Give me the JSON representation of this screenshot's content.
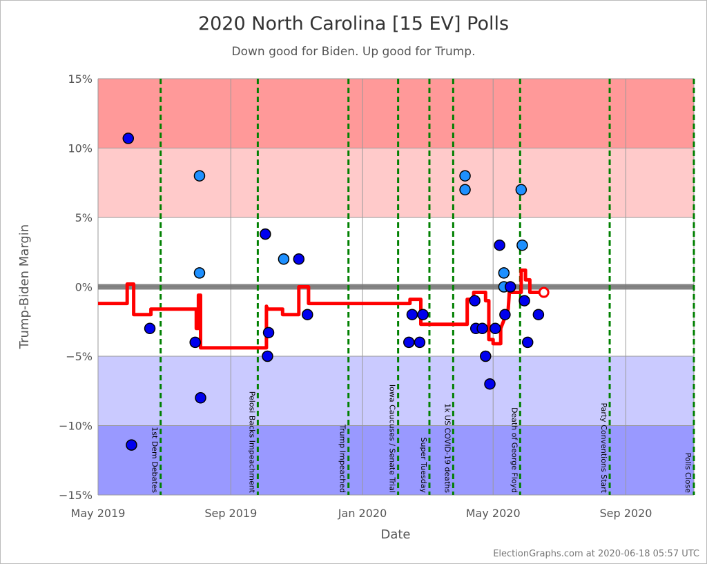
{
  "chart_data": {
    "type": "scatter",
    "title": "2020 North Carolina [15 EV] Polls",
    "subtitle": "Down good for Biden. Up good for Trump.",
    "xlabel": "Date",
    "ylabel": "Trump-Biden Margin",
    "xlim": [
      "2019-05-01",
      "2020-11-03"
    ],
    "ylim": [
      -15,
      15
    ],
    "x_ticks": [
      {
        "date": "2019-05-01",
        "label": "May 2019"
      },
      {
        "date": "2019-09-01",
        "label": "Sep 2019"
      },
      {
        "date": "2020-01-01",
        "label": "Jan 2020"
      },
      {
        "date": "2020-05-01",
        "label": "May 2020"
      },
      {
        "date": "2020-09-01",
        "label": "Sep 2020"
      }
    ],
    "y_ticks": [
      {
        "value": 15,
        "label": "15%"
      },
      {
        "value": 10,
        "label": "10%"
      },
      {
        "value": 5,
        "label": "5%"
      },
      {
        "value": 0,
        "label": "0%"
      },
      {
        "value": -5,
        "label": "-5%"
      },
      {
        "value": -10,
        "label": "-10%"
      },
      {
        "value": -15,
        "label": "-15%"
      }
    ],
    "bands": [
      {
        "from": 10,
        "to": 15,
        "color": "#ff9999"
      },
      {
        "from": 5,
        "to": 10,
        "color": "#ffcaca"
      },
      {
        "from": -5,
        "to": 5,
        "color": "#ffffff"
      },
      {
        "from": -10,
        "to": -5,
        "color": "#cacaff"
      },
      {
        "from": -15,
        "to": -10,
        "color": "#9999ff"
      }
    ],
    "colors": {
      "poll_dark": "#0000ee",
      "poll_light": "#1e90ff",
      "average": "#ff0000",
      "events": "#008000",
      "zero_line": "#777777"
    },
    "events": [
      {
        "date": "2019-06-28",
        "label": "1st Dem Debates"
      },
      {
        "date": "2019-09-26",
        "label": "Pelosi Backs Impeachment"
      },
      {
        "date": "2019-12-19",
        "label": "Trump Impeached"
      },
      {
        "date": "2020-02-03",
        "label": "Iowa Caucuses / Senate Trial"
      },
      {
        "date": "2020-03-03",
        "label": "Super Tuesday"
      },
      {
        "date": "2020-03-25",
        "label": "1k US COVID-19 deaths"
      },
      {
        "date": "2020-05-26",
        "label": "Death of George Floyd"
      },
      {
        "date": "2020-08-17",
        "label": "Party Conventions Start"
      },
      {
        "date": "2020-11-03",
        "label": "Polls Close"
      }
    ],
    "polls": [
      {
        "date": "2019-05-29",
        "margin": 10.7,
        "shade": "dark"
      },
      {
        "date": "2019-06-01",
        "margin": -11.4,
        "shade": "dark"
      },
      {
        "date": "2019-06-18",
        "margin": -3,
        "shade": "dark"
      },
      {
        "date": "2019-07-30",
        "margin": -4,
        "shade": "dark"
      },
      {
        "date": "2019-08-03",
        "margin": 8,
        "shade": "light"
      },
      {
        "date": "2019-08-03",
        "margin": 1,
        "shade": "light"
      },
      {
        "date": "2019-08-04",
        "margin": -8,
        "shade": "dark"
      },
      {
        "date": "2019-10-03",
        "margin": 3.8,
        "shade": "dark"
      },
      {
        "date": "2019-10-05",
        "margin": -5,
        "shade": "dark"
      },
      {
        "date": "2019-10-06",
        "margin": -3.3,
        "shade": "dark"
      },
      {
        "date": "2019-10-20",
        "margin": 2,
        "shade": "light"
      },
      {
        "date": "2019-11-03",
        "margin": 2,
        "shade": "dark"
      },
      {
        "date": "2019-11-11",
        "margin": -2,
        "shade": "dark"
      },
      {
        "date": "2020-02-13",
        "margin": -4,
        "shade": "dark"
      },
      {
        "date": "2020-02-16",
        "margin": -2,
        "shade": "dark"
      },
      {
        "date": "2020-02-23",
        "margin": -4,
        "shade": "dark"
      },
      {
        "date": "2020-02-26",
        "margin": -2,
        "shade": "dark"
      },
      {
        "date": "2020-04-05",
        "margin": 8,
        "shade": "light"
      },
      {
        "date": "2020-04-05",
        "margin": 7,
        "shade": "light"
      },
      {
        "date": "2020-04-14",
        "margin": -1,
        "shade": "dark"
      },
      {
        "date": "2020-04-15",
        "margin": -3,
        "shade": "dark"
      },
      {
        "date": "2020-04-21",
        "margin": -3,
        "shade": "dark"
      },
      {
        "date": "2020-04-24",
        "margin": -5,
        "shade": "dark"
      },
      {
        "date": "2020-04-28",
        "margin": -7,
        "shade": "dark"
      },
      {
        "date": "2020-05-03",
        "margin": -3,
        "shade": "dark"
      },
      {
        "date": "2020-05-07",
        "margin": 3,
        "shade": "dark"
      },
      {
        "date": "2020-05-11",
        "margin": 1,
        "shade": "light"
      },
      {
        "date": "2020-05-11",
        "margin": 0,
        "shade": "light"
      },
      {
        "date": "2020-05-12",
        "margin": -2,
        "shade": "dark"
      },
      {
        "date": "2020-05-17",
        "margin": 0,
        "shade": "dark"
      },
      {
        "date": "2020-05-27",
        "margin": 7,
        "shade": "light"
      },
      {
        "date": "2020-05-28",
        "margin": 3,
        "shade": "light"
      },
      {
        "date": "2020-05-30",
        "margin": -1,
        "shade": "dark"
      },
      {
        "date": "2020-06-02",
        "margin": -4,
        "shade": "dark"
      },
      {
        "date": "2020-06-12",
        "margin": -2,
        "shade": "dark"
      }
    ],
    "average": [
      [
        "2019-05-01",
        -1.2
      ],
      [
        "2019-05-28",
        -1.2
      ],
      [
        "2019-05-28",
        0.2
      ],
      [
        "2019-06-03",
        0.2
      ],
      [
        "2019-06-03",
        -2
      ],
      [
        "2019-06-19",
        -2
      ],
      [
        "2019-06-19",
        -1.6
      ],
      [
        "2019-07-31",
        -1.6
      ],
      [
        "2019-07-31",
        -3
      ],
      [
        "2019-08-02",
        -3
      ],
      [
        "2019-08-02",
        -0.6
      ],
      [
        "2019-08-04",
        -0.6
      ],
      [
        "2019-08-04",
        -4.4
      ],
      [
        "2019-10-04",
        -4.4
      ],
      [
        "2019-10-04",
        -1.4
      ],
      [
        "2019-10-05",
        -1.6
      ],
      [
        "2019-10-19",
        -1.6
      ],
      [
        "2019-10-19",
        -2
      ],
      [
        "2019-11-03",
        -2
      ],
      [
        "2019-11-03",
        0
      ],
      [
        "2019-11-12",
        0
      ],
      [
        "2019-11-12",
        -1.2
      ],
      [
        "2020-02-14",
        -1.2
      ],
      [
        "2020-02-14",
        -0.9
      ],
      [
        "2020-02-24",
        -0.9
      ],
      [
        "2020-02-24",
        -2.7
      ],
      [
        "2020-04-07",
        -2.7
      ],
      [
        "2020-04-07",
        -0.9
      ],
      [
        "2020-04-13",
        -0.9
      ],
      [
        "2020-04-13",
        -0.4
      ],
      [
        "2020-04-24",
        -0.4
      ],
      [
        "2020-04-24",
        -1
      ],
      [
        "2020-04-27",
        -1
      ],
      [
        "2020-04-27",
        -3.8
      ],
      [
        "2020-05-01",
        -3.8
      ],
      [
        "2020-05-01",
        -4.1
      ],
      [
        "2020-05-08",
        -4.1
      ],
      [
        "2020-05-08",
        -3
      ],
      [
        "2020-05-15",
        -1.6
      ],
      [
        "2020-05-16",
        -0.4
      ],
      [
        "2020-05-27",
        -0.4
      ],
      [
        "2020-05-27",
        1.2
      ],
      [
        "2020-05-31",
        1.2
      ],
      [
        "2020-05-31",
        0.5
      ],
      [
        "2020-06-04",
        0.5
      ],
      [
        "2020-06-04",
        -0.4
      ],
      [
        "2020-06-17",
        -0.4
      ]
    ],
    "latest": {
      "date": "2020-06-17",
      "margin": -0.4
    }
  },
  "credit": "ElectionGraphs.com at 2020-06-18 05:57 UTC"
}
